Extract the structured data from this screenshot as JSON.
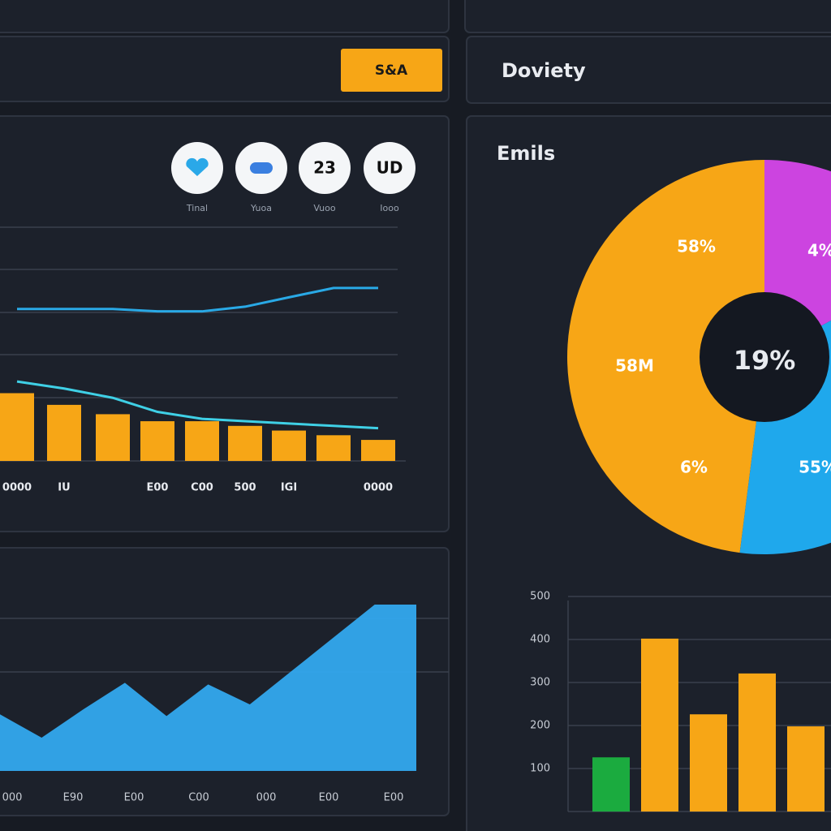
{
  "header": {
    "button": "S&A",
    "title": "Doviety"
  },
  "icons": [
    {
      "label": "Tinal"
    },
    {
      "label": "Yuoa"
    },
    {
      "glyph": "23",
      "label": "Vuoo"
    },
    {
      "glyph": "UD",
      "label": "Iooo"
    }
  ],
  "chart_data": [
    {
      "type": "bar",
      "categories": [
        "0000",
        "IU",
        null,
        "E00",
        "C00",
        "500",
        "IGI",
        null,
        "0000"
      ],
      "ylim": [
        0,
        100
      ],
      "series": [
        {
          "type": "bar",
          "color": "#f7a616",
          "values": [
            29,
            24,
            20,
            17,
            17,
            15,
            13,
            11,
            9
          ]
        },
        {
          "type": "line",
          "color": "#29a9e6",
          "values": [
            65,
            65,
            65,
            64,
            64,
            66,
            70,
            74,
            74
          ]
        },
        {
          "type": "line",
          "color": "#3fd0e6",
          "values": [
            34,
            31,
            27,
            21,
            18,
            17,
            16,
            15,
            14
          ]
        }
      ]
    },
    {
      "type": "area",
      "color": "#33a9ee",
      "ylim": [
        0,
        100
      ],
      "values": [
        34,
        20,
        37,
        53,
        33,
        52,
        40,
        60,
        80,
        100,
        100
      ],
      "x_labels": [
        "000",
        "E90",
        "E00",
        "C00",
        "000",
        "E00",
        "E00"
      ]
    },
    {
      "type": "pie",
      "title": "Emils",
      "center_label": "19%",
      "values": [
        17,
        35,
        48
      ],
      "colors": [
        "#cc44e0",
        "#1fa8ec",
        "#f7a616"
      ],
      "annotations": [
        "58%",
        "4%",
        "58M",
        "6%",
        "55%"
      ]
    },
    {
      "type": "bar",
      "ylim": [
        0,
        500
      ],
      "yticks": [
        100,
        200,
        300,
        400,
        500
      ],
      "values": [
        126,
        402,
        226,
        321,
        198
      ],
      "colors": [
        "#1bab3f",
        "#f7a616",
        "#f7a616",
        "#f7a616",
        "#f7a616"
      ]
    }
  ]
}
